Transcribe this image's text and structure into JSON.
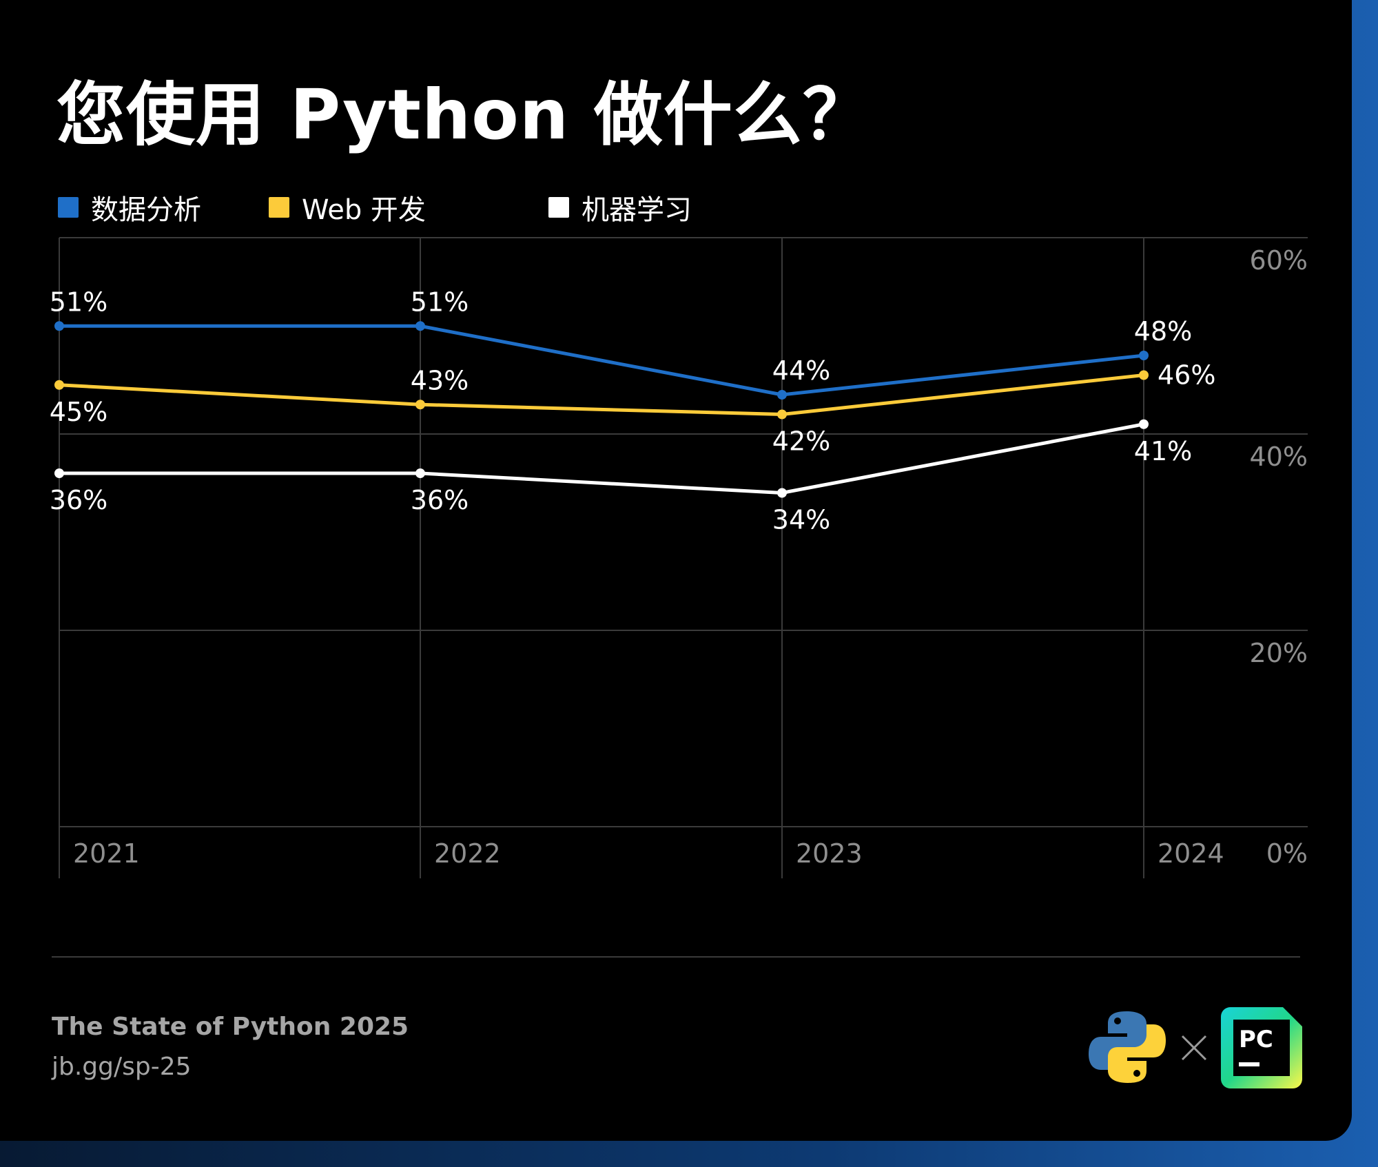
{
  "title": "您使用 Python 做什么？",
  "legend": [
    {
      "label": "数据分析",
      "color": "#1f6fc8"
    },
    {
      "label": "Web 开发",
      "color": "#fccb3a"
    },
    {
      "label": "机器学习",
      "color": "#ffffff"
    }
  ],
  "chart_data": {
    "type": "line",
    "x": [
      "2021",
      "2022",
      "2023",
      "2024"
    ],
    "ylim": [
      0,
      60
    ],
    "yticks": [
      "0%",
      "20%",
      "40%",
      "60%"
    ],
    "grid": true,
    "legend_position": "top-left",
    "series": [
      {
        "name": "数据分析",
        "color": "#1f6fc8",
        "values": [
          51,
          51,
          44,
          48
        ],
        "labels": [
          "51%",
          "51%",
          "44%",
          "48%"
        ]
      },
      {
        "name": "Web 开发",
        "color": "#fccb3a",
        "values": [
          45,
          43,
          42,
          46
        ],
        "labels": [
          "45%",
          "43%",
          "42%",
          "46%"
        ]
      },
      {
        "name": "机器学习",
        "color": "#ffffff",
        "values": [
          36,
          36,
          34,
          41
        ],
        "labels": [
          "36%",
          "36%",
          "34%",
          "41%"
        ]
      }
    ]
  },
  "footer": {
    "title": "The State of Python 2025",
    "link": "jb.gg/sp-25",
    "pycharm_mark": "PC"
  }
}
